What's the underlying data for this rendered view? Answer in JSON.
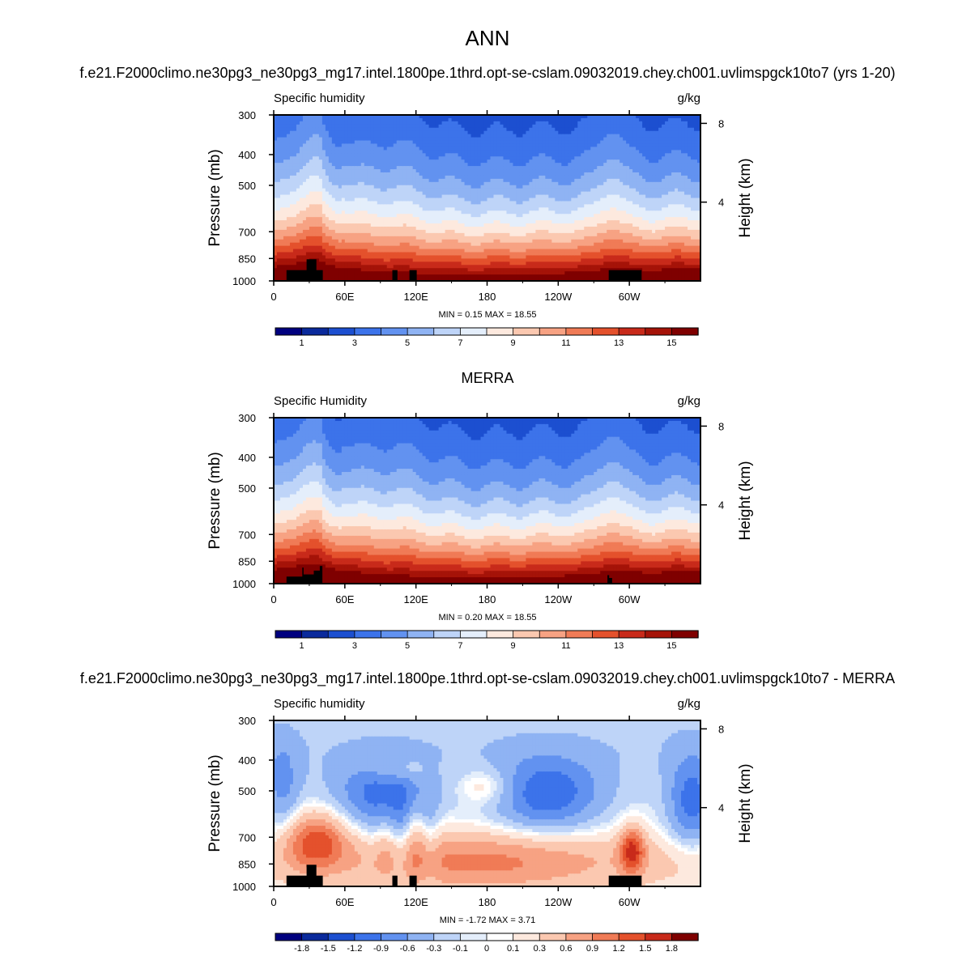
{
  "figure": {
    "title": "ANN",
    "panel_titles": [
      "f.e21.F2000climo.ne30pg3_ne30pg3_mg17.intel.1800pe.1thrd.opt-se-cslam.09032019.chey.ch001.uvlimspgck10to7 (yrs 1-20)",
      "MERRA",
      "f.e21.F2000climo.ne30pg3_ne30pg3_mg17.intel.1800pe.1thrd.opt-se-cslam.09032019.chey.ch001.uvlimspgck10to7 - MERRA"
    ]
  },
  "colors": {
    "abs_scale": [
      "#00007f",
      "#0a2a9c",
      "#1c4fd0",
      "#3c73ea",
      "#6292f0",
      "#8fb3f3",
      "#bed4f8",
      "#e4eefb",
      "#fde9de",
      "#fbc8b0",
      "#f7a283",
      "#f07b56",
      "#e4512c",
      "#c82a1a",
      "#a51308",
      "#7f0000"
    ],
    "diff_scale": [
      "#00007f",
      "#0a2a9c",
      "#1c4fd0",
      "#3c73ea",
      "#6292f0",
      "#8fb3f3",
      "#bed4f8",
      "#e4eefb",
      "#ffffff",
      "#fde9de",
      "#fbc8b0",
      "#f7a283",
      "#f07b56",
      "#e4512c",
      "#c82a1a",
      "#7f0000"
    ],
    "topography": "#000000"
  },
  "chart_data": [
    {
      "type": "heatmap",
      "title": "Specific humidity",
      "units": "g/kg",
      "ylabel": "Pressure (mb)",
      "ylabel_right": "Height (km)",
      "x_ticks": [
        "0",
        "60E",
        "120E",
        "180",
        "120W",
        "60W"
      ],
      "y_ticks": [
        "300",
        "400",
        "500",
        "700",
        "850",
        "1000"
      ],
      "right_ticks": [
        "8",
        "4"
      ],
      "ylim": [
        1000,
        300
      ],
      "min_label": "MIN =   0.15  MAX =   18.55",
      "min": 0.15,
      "max": 18.55,
      "colorbar_labels": [
        "1",
        "3",
        "5",
        "7",
        "9",
        "11",
        "13",
        "15"
      ]
    },
    {
      "type": "heatmap",
      "title": "Specific Humidity",
      "units": "g/kg",
      "ylabel": "Pressure (mb)",
      "ylabel_right": "Height (km)",
      "x_ticks": [
        "0",
        "60E",
        "120E",
        "180",
        "120W",
        "60W"
      ],
      "y_ticks": [
        "300",
        "400",
        "500",
        "700",
        "850",
        "1000"
      ],
      "right_ticks": [
        "8",
        "4"
      ],
      "ylim": [
        1000,
        300
      ],
      "min_label": "MIN =   0.20  MAX =   18.55",
      "min": 0.2,
      "max": 18.55,
      "colorbar_labels": [
        "1",
        "3",
        "5",
        "7",
        "9",
        "11",
        "13",
        "15"
      ]
    },
    {
      "type": "heatmap",
      "title": "Specific humidity",
      "units": "g/kg",
      "ylabel": "Pressure (mb)",
      "ylabel_right": "Height (km)",
      "x_ticks": [
        "0",
        "60E",
        "120E",
        "180",
        "120W",
        "60W"
      ],
      "y_ticks": [
        "300",
        "400",
        "500",
        "700",
        "850",
        "1000"
      ],
      "right_ticks": [
        "8",
        "4"
      ],
      "ylim": [
        1000,
        300
      ],
      "min_label": "MIN =  -1.72  MAX =   3.71",
      "min": -1.72,
      "max": 3.71,
      "colorbar_labels": [
        "-1.8",
        "-1.5",
        "-1.2",
        "-0.9",
        "-0.6",
        "-0.3",
        "-0.1",
        "0",
        "0.1",
        "0.3",
        "0.6",
        "0.9",
        "1.2",
        "1.5",
        "1.8"
      ]
    }
  ]
}
